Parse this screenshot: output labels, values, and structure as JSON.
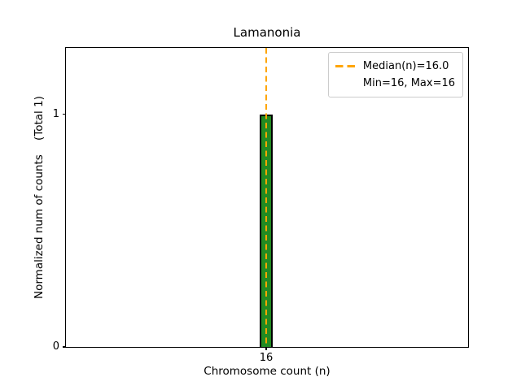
{
  "title": "Lamanonia",
  "xlabel": "Chromosome count (n)",
  "ylabel": "Normalized num of counts    (Total 1)",
  "legend": {
    "median_label": "Median(n)=16.0",
    "minmax_label": "Min=16, Max=16"
  },
  "colors": {
    "bar_fill": "#228B22",
    "bar_edge": "#000000",
    "median_line": "#FFA500",
    "legend_border": "#cccccc",
    "axes_spine": "#000000",
    "background": "#ffffff"
  },
  "chart_data": {
    "type": "bar",
    "title": "Lamanonia",
    "xlabel": "Chromosome count (n)",
    "ylabel": "Normalized num of counts    (Total 1)",
    "categories": [
      "16"
    ],
    "values": [
      1
    ],
    "x_tick_labels": [
      "16"
    ],
    "y_ticks": [
      0,
      1
    ],
    "ylim": [
      0,
      1.285
    ],
    "grid": false,
    "legend_position": "upper right",
    "legend_entries": [
      "Median(n)=16.0",
      "Min=16, Max=16"
    ],
    "annotations": {
      "median_n": 16.0,
      "min_n": 16,
      "max_n": 16,
      "total_counts": 1
    }
  }
}
